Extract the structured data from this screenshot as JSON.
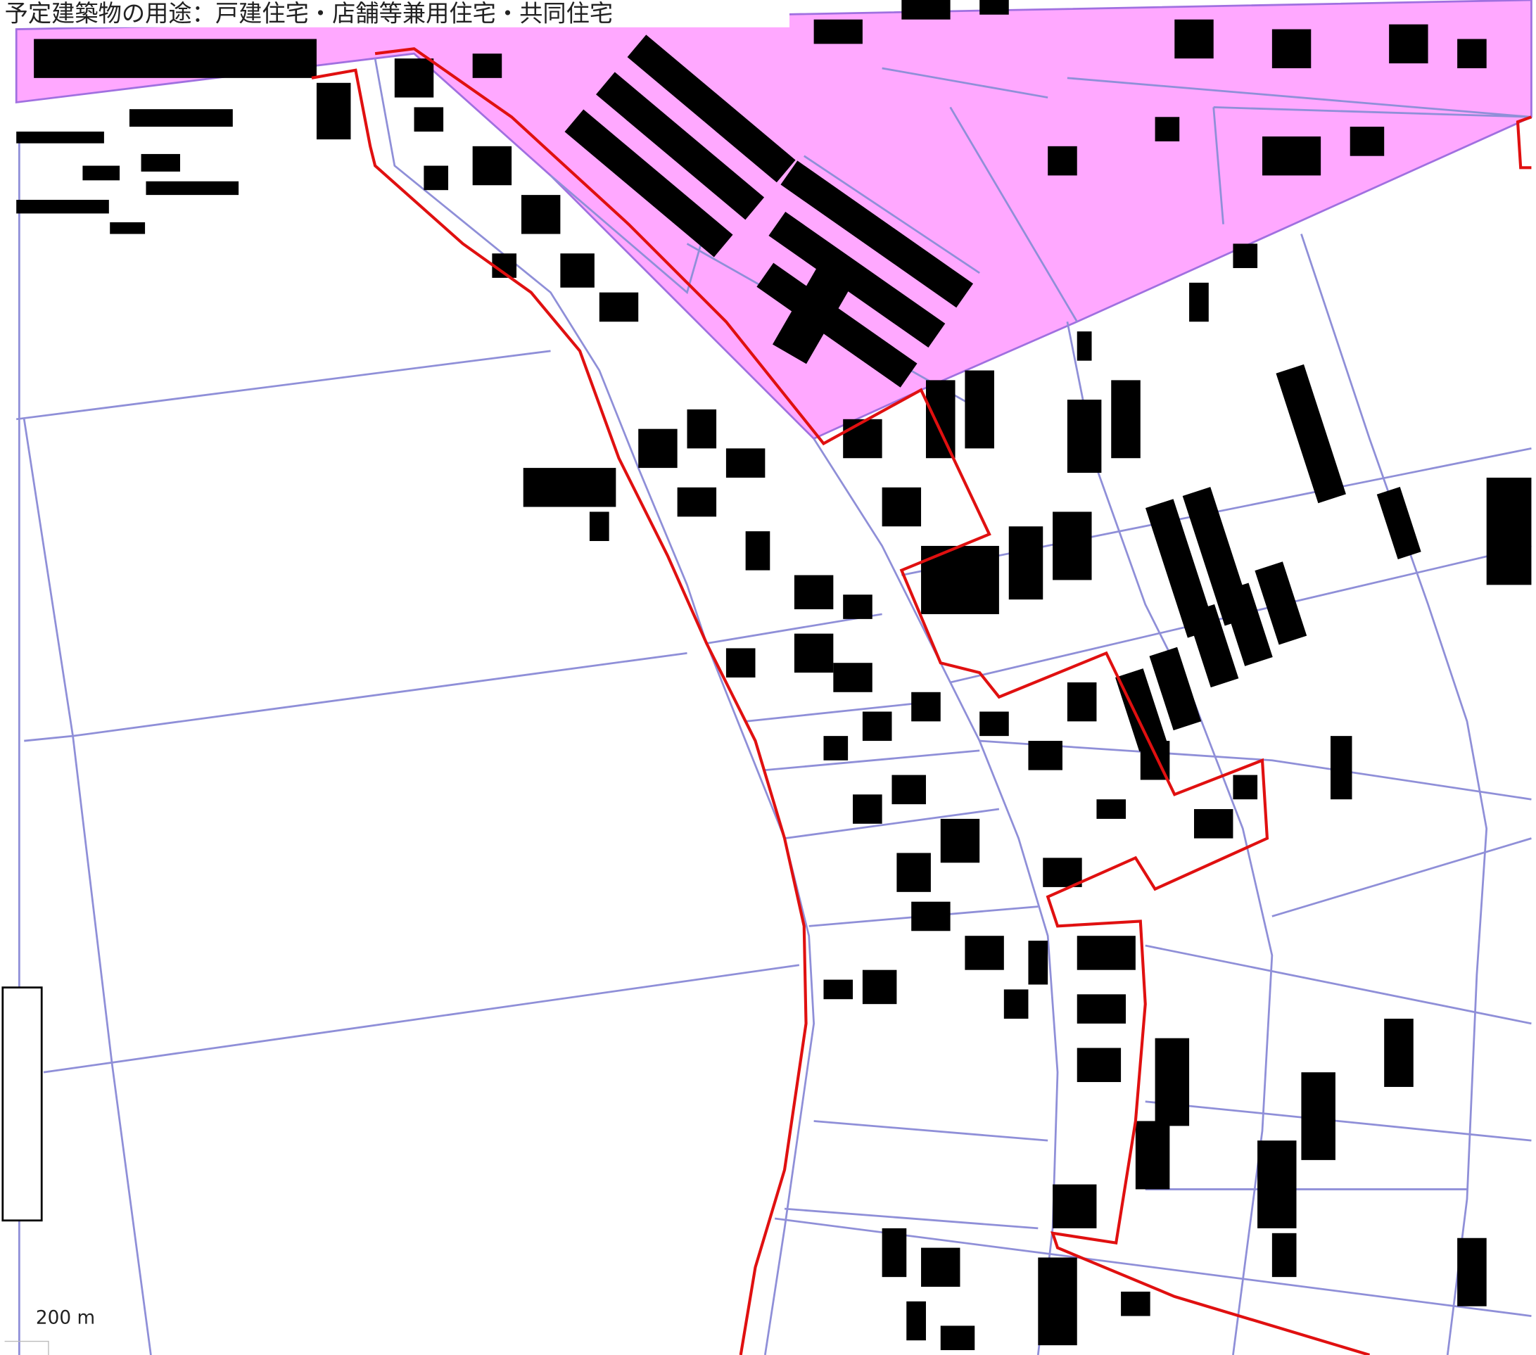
{
  "map": {
    "caption": "予定建築物の用途：戸建住宅・店舗等兼用住宅・共同住宅",
    "scale_label": "200 m"
  }
}
